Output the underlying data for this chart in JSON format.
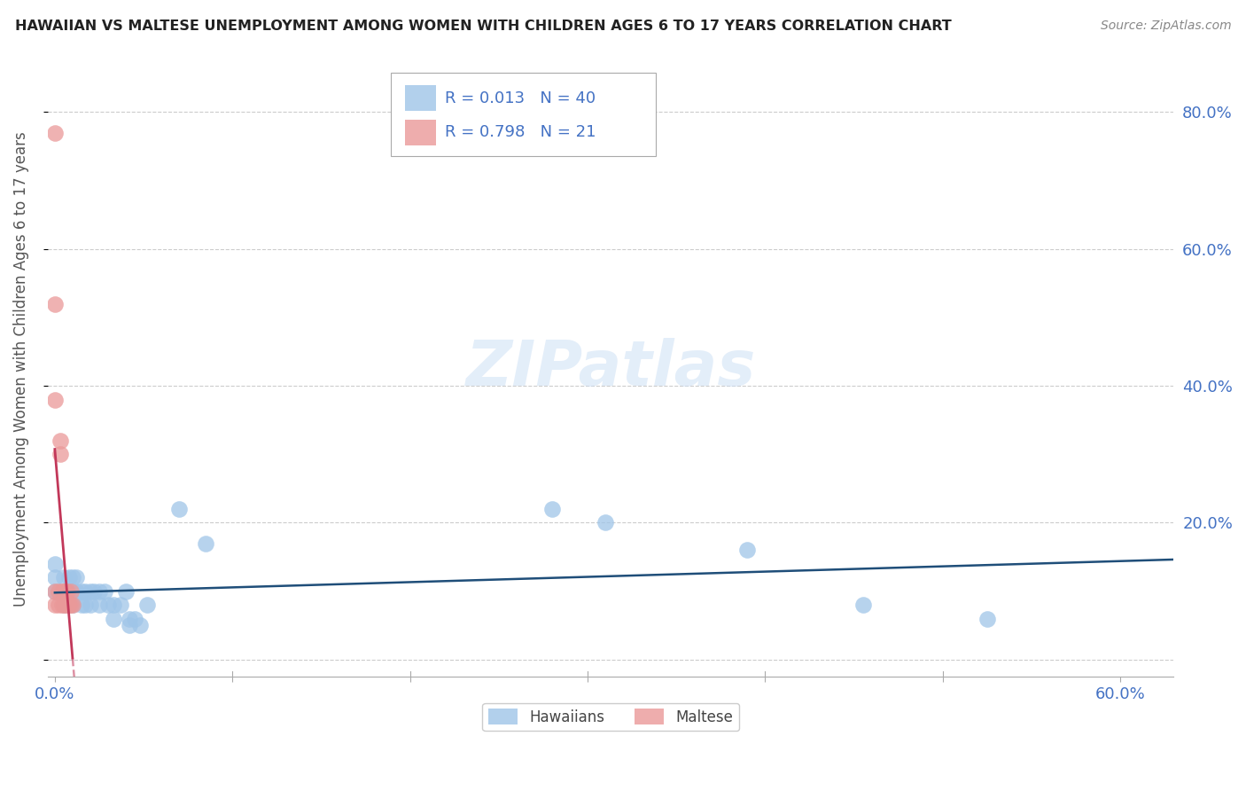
{
  "title": "HAWAIIAN VS MALTESE UNEMPLOYMENT AMONG WOMEN WITH CHILDREN AGES 6 TO 17 YEARS CORRELATION CHART",
  "source": "Source: ZipAtlas.com",
  "ylabel": "Unemployment Among Women with Children Ages 6 to 17 years",
  "xlim": [
    -0.004,
    0.63
  ],
  "ylim": [
    -0.025,
    0.875
  ],
  "xticks": [
    0.0,
    0.1,
    0.2,
    0.3,
    0.4,
    0.5,
    0.6
  ],
  "xticklabels": [
    "0.0%",
    "",
    "",
    "",
    "",
    "",
    "60.0%"
  ],
  "yticks": [
    0.0,
    0.2,
    0.4,
    0.6,
    0.8
  ],
  "yticklabels_right": [
    "",
    "20.0%",
    "40.0%",
    "60.0%",
    "80.0%"
  ],
  "tick_color": "#4472c4",
  "hawaiian_color": "#9fc5e8",
  "maltese_color": "#ea9999",
  "hawaiian_line_color": "#1f4e79",
  "maltese_line_color": "#c2385a",
  "hawaiian_R": 0.013,
  "hawaiian_N": 40,
  "maltese_R": 0.798,
  "maltese_N": 21,
  "hawaiian_x": [
    0.0,
    0.0,
    0.0,
    0.005,
    0.005,
    0.005,
    0.008,
    0.008,
    0.01,
    0.01,
    0.01,
    0.012,
    0.012,
    0.015,
    0.015,
    0.017,
    0.017,
    0.02,
    0.02,
    0.022,
    0.025,
    0.025,
    0.028,
    0.03,
    0.033,
    0.033,
    0.037,
    0.04,
    0.042,
    0.042,
    0.045,
    0.048,
    0.052,
    0.07,
    0.085,
    0.28,
    0.31,
    0.39,
    0.455,
    0.525
  ],
  "hawaiian_y": [
    0.1,
    0.12,
    0.14,
    0.08,
    0.1,
    0.12,
    0.1,
    0.12,
    0.08,
    0.1,
    0.12,
    0.1,
    0.12,
    0.08,
    0.1,
    0.08,
    0.1,
    0.08,
    0.1,
    0.1,
    0.08,
    0.1,
    0.1,
    0.08,
    0.06,
    0.08,
    0.08,
    0.1,
    0.05,
    0.06,
    0.06,
    0.05,
    0.08,
    0.22,
    0.17,
    0.22,
    0.2,
    0.16,
    0.08,
    0.06
  ],
  "maltese_x": [
    0.0,
    0.0,
    0.0,
    0.0,
    0.0,
    0.002,
    0.002,
    0.003,
    0.003,
    0.004,
    0.004,
    0.005,
    0.005,
    0.006,
    0.006,
    0.007,
    0.007,
    0.008,
    0.009,
    0.009,
    0.01
  ],
  "maltese_y": [
    0.08,
    0.1,
    0.38,
    0.52,
    0.77,
    0.08,
    0.1,
    0.3,
    0.32,
    0.08,
    0.1,
    0.08,
    0.1,
    0.08,
    0.1,
    0.08,
    0.1,
    0.08,
    0.08,
    0.1,
    0.08
  ]
}
